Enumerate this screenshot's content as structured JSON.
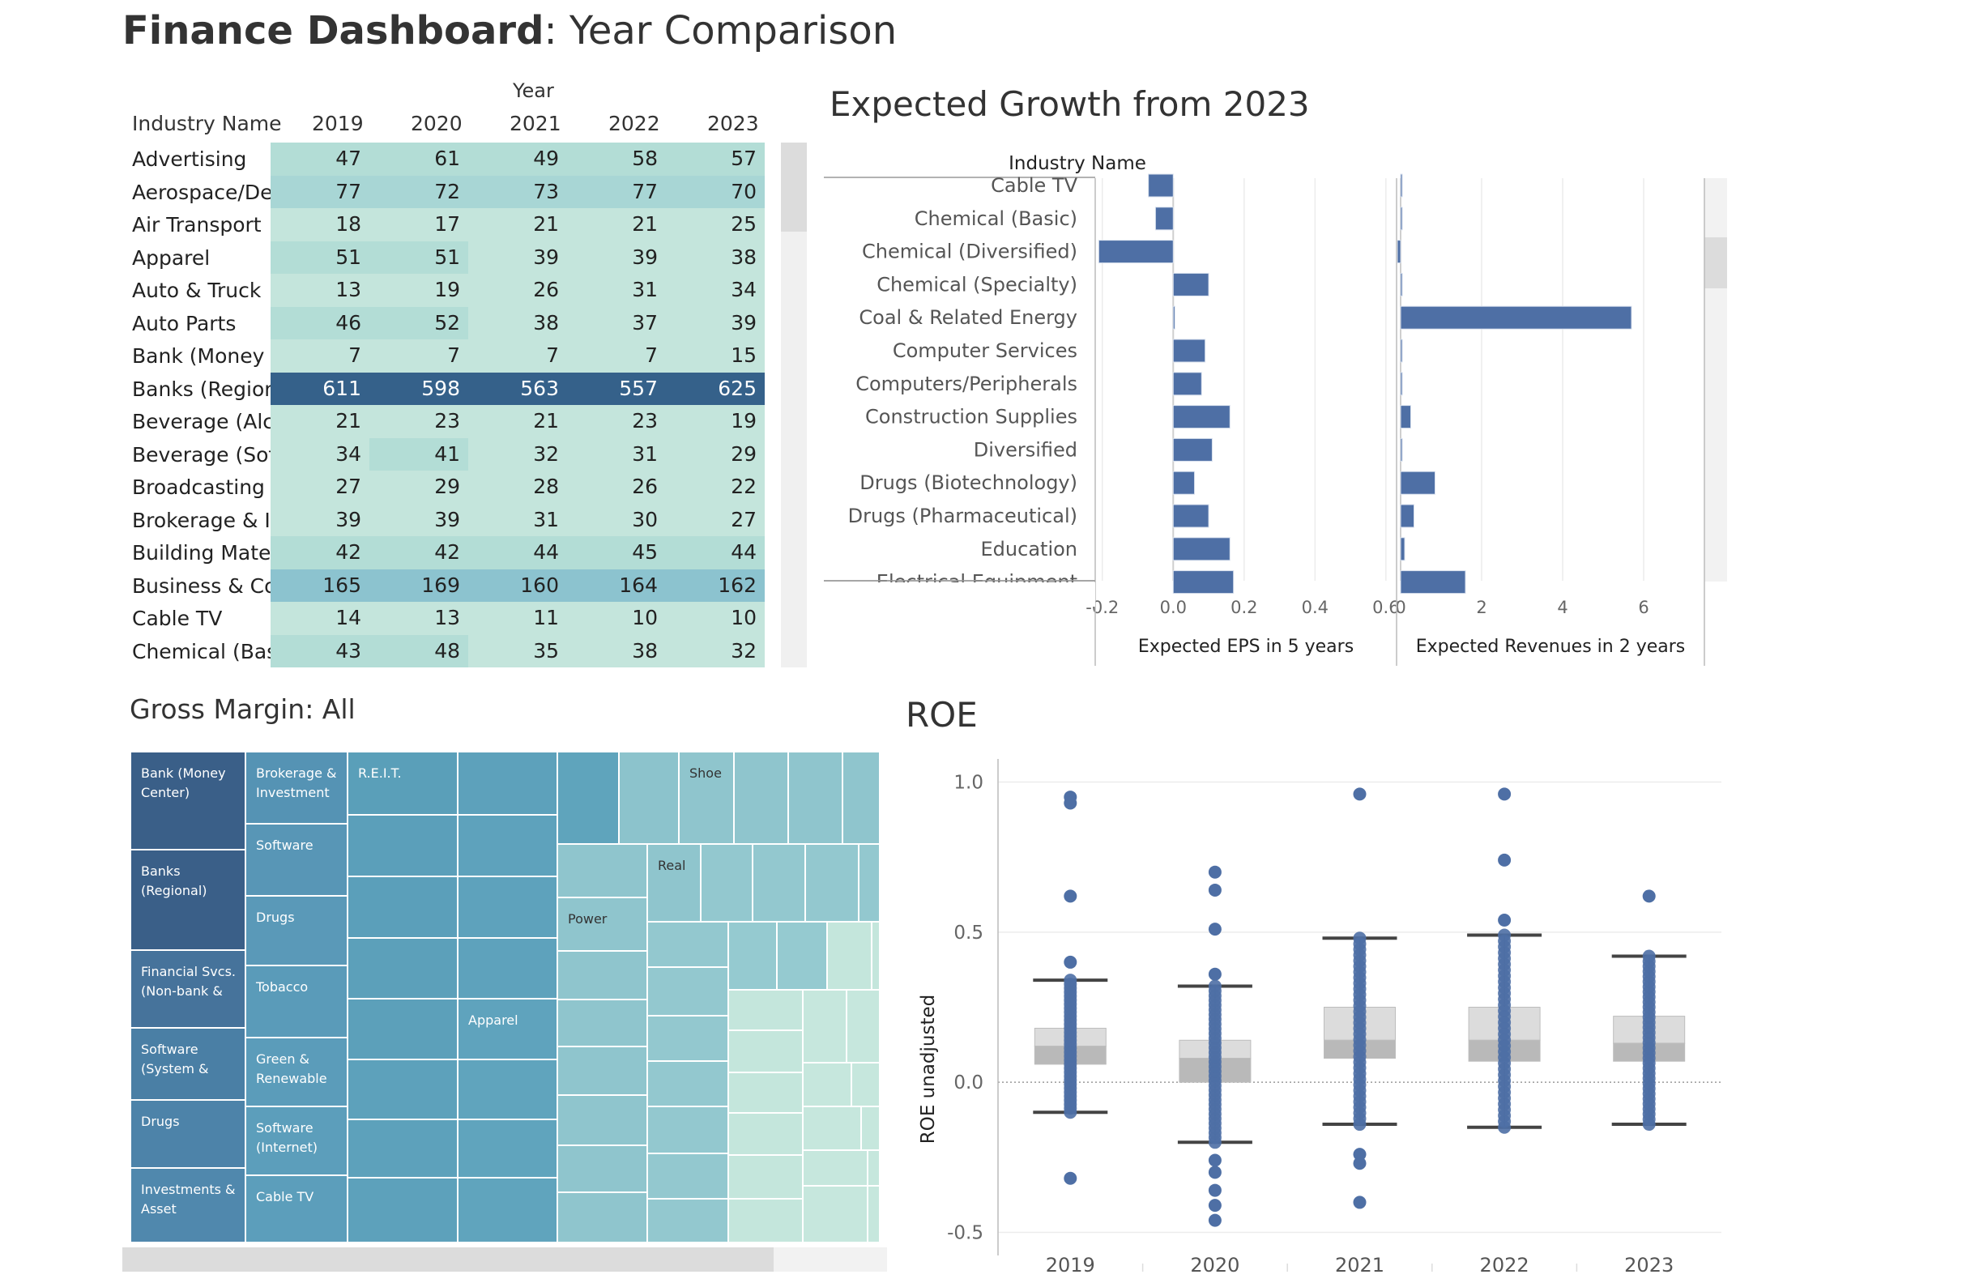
{
  "dashboard": {
    "title_bold": "Finance Dashboard",
    "title_rest": ": Year Comparison"
  },
  "highlight_table": {
    "column_group_label": "Year",
    "row_header": "Industry Name",
    "years": [
      "2019",
      "2020",
      "2021",
      "2022",
      "2023"
    ],
    "rows": [
      {
        "name": "Advertising",
        "values": [
          47,
          61,
          49,
          58,
          57
        ]
      },
      {
        "name": "Aerospace/Def..",
        "values": [
          77,
          72,
          73,
          77,
          70
        ]
      },
      {
        "name": "Air Transport",
        "values": [
          18,
          17,
          21,
          21,
          25
        ]
      },
      {
        "name": "Apparel",
        "values": [
          51,
          51,
          39,
          39,
          38
        ]
      },
      {
        "name": "Auto & Truck",
        "values": [
          13,
          19,
          26,
          31,
          34
        ]
      },
      {
        "name": "Auto Parts",
        "values": [
          46,
          52,
          38,
          37,
          39
        ]
      },
      {
        "name": "Bank (Money C..",
        "values": [
          7,
          7,
          7,
          7,
          15
        ]
      },
      {
        "name": "Banks (Regiona..",
        "values": [
          611,
          598,
          563,
          557,
          625
        ]
      },
      {
        "name": "Beverage (Alco..",
        "values": [
          21,
          23,
          21,
          23,
          19
        ]
      },
      {
        "name": "Beverage (Soft)",
        "values": [
          34,
          41,
          32,
          31,
          29
        ]
      },
      {
        "name": "Broadcasting",
        "values": [
          27,
          29,
          28,
          26,
          22
        ]
      },
      {
        "name": "Brokerage & In..",
        "values": [
          39,
          39,
          31,
          30,
          27
        ]
      },
      {
        "name": "Building Mater..",
        "values": [
          42,
          42,
          44,
          45,
          44
        ]
      },
      {
        "name": "Business & Con..",
        "values": [
          165,
          169,
          160,
          164,
          162
        ]
      },
      {
        "name": "Cable TV",
        "values": [
          14,
          13,
          11,
          10,
          10
        ]
      },
      {
        "name": "Chemical (Basic)",
        "values": [
          43,
          48,
          35,
          38,
          32
        ]
      }
    ]
  },
  "expected_growth": {
    "title": "Expected Growth from 2023",
    "row_header": "Industry Name",
    "industries": [
      "Cable TV",
      "Chemical (Basic)",
      "Chemical (Diversified)",
      "Chemical (Specialty)",
      "Coal & Related Energy",
      "Computer Services",
      "Computers/Peripherals",
      "Construction Supplies",
      "Diversified",
      "Drugs (Biotechnology)",
      "Drugs (Pharmaceutical)",
      "Education",
      "Electrical Equipment"
    ],
    "panels": [
      {
        "label": "Expected EPS in 5 years",
        "ticks": [
          "-0.2",
          "0.0",
          "0.2",
          "0.4",
          "0.6"
        ],
        "tick_values": [
          -0.2,
          0.0,
          0.2,
          0.4,
          0.6
        ],
        "values": [
          -0.07,
          -0.05,
          -0.21,
          0.1,
          0.0,
          0.09,
          0.08,
          0.16,
          0.11,
          0.06,
          0.1,
          0.16,
          0.17
        ]
      },
      {
        "label": "Expected Revenues in 2 years",
        "ticks": [
          "0",
          "2",
          "4",
          "6"
        ],
        "tick_values": [
          0,
          2,
          4,
          6
        ],
        "values": [
          0.03,
          0.02,
          -0.08,
          0.01,
          5.7,
          0.01,
          0.02,
          0.25,
          0.02,
          0.85,
          0.33,
          0.1,
          1.6
        ]
      }
    ]
  },
  "gross_margin": {
    "title": "Gross Margin: All",
    "tiles": [
      {
        "label": "Bank (Money Center)"
      },
      {
        "label": "Banks (Regional)"
      },
      {
        "label": "Financial Svcs. (Non-bank &"
      },
      {
        "label": "Software (System &"
      },
      {
        "label": "Drugs"
      },
      {
        "label": "Investments & Asset"
      },
      {
        "label": "Brokerage & Investment"
      },
      {
        "label": "Software"
      },
      {
        "label": "Drugs"
      },
      {
        "label": "Tobacco"
      },
      {
        "label": "Green & Renewable"
      },
      {
        "label": "Software (Internet)"
      },
      {
        "label": "Cable TV"
      },
      {
        "label": "R.E.I.T."
      },
      {
        "label": "Apparel"
      },
      {
        "label": "Power"
      },
      {
        "label": "Real"
      },
      {
        "label": "Shoe"
      }
    ]
  },
  "colors": {
    "bar": "#4e6fa5",
    "dot": "#4e6fa5",
    "highlight_dark": "#2f5880",
    "highlight_light": "#c2e3db"
  },
  "roe": {
    "title": "ROE",
    "ylabel": "ROE unadjusted",
    "yticks": [
      "1.0",
      "0.5",
      "0.0",
      "-0.5"
    ],
    "ytick_values": [
      1.0,
      0.5,
      0.0,
      -0.5
    ],
    "years": [
      "2019",
      "2020",
      "2021",
      "2022",
      "2023"
    ]
  },
  "chart_data": [
    {
      "type": "bar",
      "title": "Expected Growth from 2023",
      "categories": [
        "Cable TV",
        "Chemical (Basic)",
        "Chemical (Diversified)",
        "Chemical (Specialty)",
        "Coal & Related Energy",
        "Computer Services",
        "Computers/Peripherals",
        "Construction Supplies",
        "Diversified",
        "Drugs (Biotechnology)",
        "Drugs (Pharmaceutical)",
        "Education",
        "Electrical Equipment"
      ],
      "series": [
        {
          "name": "Expected EPS in 5 years",
          "values": [
            -0.07,
            -0.05,
            -0.21,
            0.1,
            0.0,
            0.09,
            0.08,
            0.16,
            0.11,
            0.06,
            0.1,
            0.16,
            0.17
          ],
          "xlim": [
            -0.22,
            0.63
          ]
        },
        {
          "name": "Expected Revenues in 2 years",
          "values": [
            0.03,
            0.02,
            -0.08,
            0.01,
            5.7,
            0.01,
            0.02,
            0.25,
            0.02,
            0.85,
            0.33,
            0.1,
            1.6
          ],
          "xlim": [
            -0.1,
            7.5
          ]
        }
      ],
      "grid": true
    },
    {
      "type": "scatter",
      "title": "ROE",
      "ylabel": "ROE unadjusted",
      "ylim": [
        -0.55,
        1.05
      ],
      "categories": [
        "2019",
        "2020",
        "2021",
        "2022",
        "2023"
      ],
      "boxes": [
        {
          "year": "2019",
          "q1": 0.06,
          "median": 0.12,
          "q3": 0.18,
          "lower_whisker": -0.1,
          "upper_whisker": 0.34
        },
        {
          "year": "2020",
          "q1": 0.0,
          "median": 0.08,
          "q3": 0.14,
          "lower_whisker": -0.2,
          "upper_whisker": 0.32
        },
        {
          "year": "2021",
          "q1": 0.08,
          "median": 0.14,
          "q3": 0.25,
          "lower_whisker": -0.14,
          "upper_whisker": 0.48
        },
        {
          "year": "2022",
          "q1": 0.07,
          "median": 0.14,
          "q3": 0.25,
          "lower_whisker": -0.15,
          "upper_whisker": 0.49
        },
        {
          "year": "2023",
          "q1": 0.07,
          "median": 0.13,
          "q3": 0.22,
          "lower_whisker": -0.14,
          "upper_whisker": 0.42
        }
      ],
      "outliers": [
        {
          "year": "2019",
          "values": [
            0.95,
            0.93,
            0.62,
            0.4,
            -0.32
          ]
        },
        {
          "year": "2020",
          "values": [
            0.7,
            0.64,
            0.51,
            0.36,
            -0.26,
            -0.3,
            -0.36,
            -0.41,
            -0.46
          ]
        },
        {
          "year": "2021",
          "values": [
            0.96,
            -0.24,
            -0.27,
            -0.4
          ]
        },
        {
          "year": "2022",
          "values": [
            0.96,
            0.74,
            0.54
          ]
        },
        {
          "year": "2023",
          "values": [
            0.62
          ]
        }
      ],
      "grid": true
    }
  ]
}
